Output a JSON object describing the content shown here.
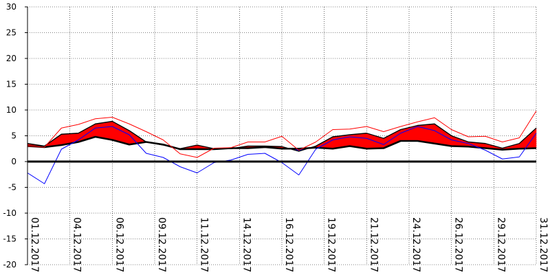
{
  "chart_data": {
    "type": "area",
    "title": "",
    "xlabel": "",
    "ylabel": "",
    "ylim": [
      -20,
      30
    ],
    "yticks": [
      -20,
      -15,
      -10,
      -5,
      0,
      5,
      10,
      15,
      20,
      25,
      30
    ],
    "y_tick_labels": [
      "-20",
      "-15",
      "-10",
      "-5",
      "0",
      "5",
      "10",
      "15",
      "20",
      "25",
      "30"
    ],
    "x_tick_labels": [
      "01.12.2017",
      "04.12.2017",
      "06.12.2017",
      "09.12.2017",
      "11.12.2017",
      "14.12.2017",
      "16.12.2017",
      "19.12.2017",
      "21.12.2017",
      "24.12.2017",
      "26.12.2017",
      "29.12.2017",
      "31.12.2017"
    ],
    "x_tick_days": [
      1,
      3.5,
      6,
      8.5,
      11,
      13.5,
      16,
      18.5,
      21,
      23.5,
      26,
      28.5,
      31
    ],
    "x": [
      1,
      2,
      3,
      4,
      5,
      6,
      7,
      8,
      9,
      10,
      11,
      12,
      13,
      14,
      15,
      16,
      17,
      18,
      19,
      20,
      21,
      22,
      23,
      24,
      25,
      26,
      27,
      28,
      29,
      30,
      31
    ],
    "grid": true,
    "fill_above_color": "#ff0000",
    "fill_below_color": "#0000ff",
    "series": [
      {
        "values": [
          3.5,
          3.0,
          5.3,
          5.5,
          7.3,
          7.8,
          6.0,
          3.8,
          3.2,
          2.5,
          3.2,
          2.5,
          2.5,
          3.0,
          3.0,
          2.9,
          2.0,
          3.0,
          4.8,
          5.2,
          5.5,
          4.5,
          6.2,
          7.0,
          7.3,
          5.0,
          3.8,
          3.5,
          2.6,
          3.5,
          6.5
        ],
        "color": "#000000"
      },
      {
        "values": [
          3.0,
          2.8,
          3.2,
          3.8,
          4.8,
          4.2,
          3.3,
          3.8,
          3.3,
          2.4,
          2.4,
          2.4,
          2.6,
          2.6,
          2.8,
          2.5,
          2.5,
          2.7,
          2.5,
          3.0,
          2.5,
          2.6,
          4.0,
          4.0,
          3.5,
          3.0,
          2.9,
          2.6,
          2.3,
          2.5,
          2.6
        ],
        "color": "#000000"
      },
      {
        "values": [
          3.0,
          2.8,
          6.5,
          7.2,
          8.3,
          8.6,
          7.3,
          5.8,
          4.2,
          1.5,
          0.8,
          2.6,
          2.7,
          3.8,
          3.8,
          4.9,
          2.2,
          3.8,
          6.2,
          6.3,
          6.8,
          5.8,
          6.8,
          7.7,
          8.5,
          6.2,
          4.8,
          4.9,
          3.8,
          4.6,
          9.8
        ],
        "color": "#ff0000"
      },
      {
        "values": [
          -2.2,
          -4.3,
          2.4,
          4.2,
          6.5,
          6.8,
          5.2,
          1.6,
          0.8,
          -1.0,
          -2.2,
          -0.2,
          0.3,
          1.4,
          1.6,
          -0.2,
          -2.6,
          2.4,
          4.2,
          4.8,
          4.5,
          3.3,
          5.5,
          6.8,
          6.0,
          4.2,
          3.5,
          2.2,
          0.5,
          0.9,
          5.5
        ],
        "color": "#0000ff"
      },
      {
        "values": [
          0,
          0,
          0,
          0,
          0,
          0,
          0,
          0,
          0,
          0,
          0,
          0,
          0,
          0,
          0,
          0,
          0,
          0,
          0,
          0,
          0,
          0,
          0,
          0,
          0,
          0,
          0,
          0,
          0,
          0,
          0
        ],
        "color": "#000000"
      }
    ]
  }
}
